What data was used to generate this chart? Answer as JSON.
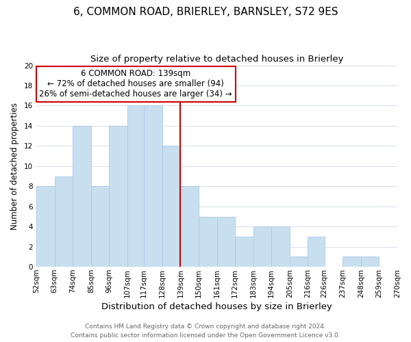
{
  "title": "6, COMMON ROAD, BRIERLEY, BARNSLEY, S72 9ES",
  "subtitle": "Size of property relative to detached houses in Brierley",
  "xlabel": "Distribution of detached houses by size in Brierley",
  "ylabel": "Number of detached properties",
  "bin_edges": [
    52,
    63,
    74,
    85,
    96,
    107,
    117,
    128,
    139,
    150,
    161,
    172,
    183,
    194,
    205,
    216,
    226,
    237,
    248,
    259,
    270
  ],
  "bar_heights": [
    8,
    9,
    14,
    8,
    14,
    16,
    16,
    12,
    8,
    5,
    5,
    3,
    4,
    4,
    1,
    3,
    0,
    1,
    1,
    0
  ],
  "x_tick_labels": [
    "52sqm",
    "63sqm",
    "74sqm",
    "85sqm",
    "96sqm",
    "107sqm",
    "117sqm",
    "128sqm",
    "139sqm",
    "150sqm",
    "161sqm",
    "172sqm",
    "183sqm",
    "194sqm",
    "205sqm",
    "216sqm",
    "226sqm",
    "237sqm",
    "248sqm",
    "259sqm",
    "270sqm"
  ],
  "bar_color": "#c8dff0",
  "bar_edgecolor": "#a8c8e8",
  "vline_x": 139,
  "vline_color": "#cc0000",
  "ylim": [
    0,
    20
  ],
  "yticks": [
    0,
    2,
    4,
    6,
    8,
    10,
    12,
    14,
    16,
    18,
    20
  ],
  "annotation_title": "6 COMMON ROAD: 139sqm",
  "annotation_line1": "← 72% of detached houses are smaller (94)",
  "annotation_line2": "26% of semi-detached houses are larger (34) →",
  "annotation_box_color": "#ffffff",
  "annotation_box_edgecolor": "#cc0000",
  "grid_color": "#d4dfe8",
  "footnote1": "Contains HM Land Registry data © Crown copyright and database right 2024.",
  "footnote2": "Contains public sector information licensed under the Open Government Licence v3.0.",
  "title_fontsize": 11,
  "subtitle_fontsize": 9.5,
  "xlabel_fontsize": 9.5,
  "ylabel_fontsize": 8.5,
  "tick_fontsize": 7.5,
  "annotation_fontsize": 8.5,
  "footnote_fontsize": 6.5
}
